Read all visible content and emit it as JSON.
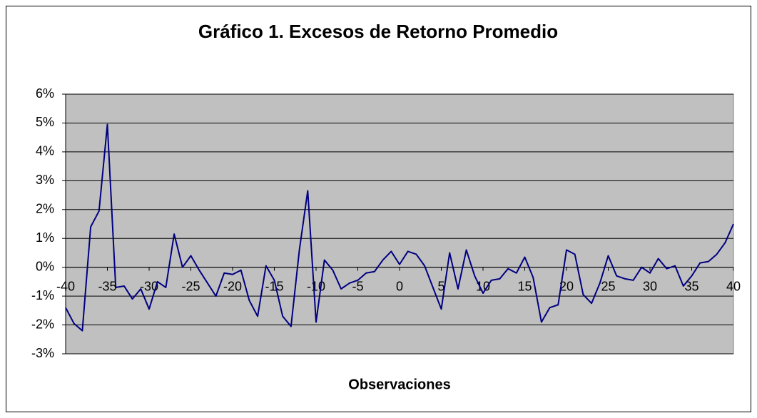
{
  "chart_data": {
    "type": "line",
    "title": "Gráfico 1. Excesos de Retorno Promedio",
    "xlabel": "Observaciones",
    "x": [
      -40,
      -39,
      -38,
      -37,
      -36,
      -35,
      -34,
      -33,
      -32,
      -31,
      -30,
      -29,
      -28,
      -27,
      -26,
      -25,
      -24,
      -23,
      -22,
      -21,
      -20,
      -19,
      -18,
      -17,
      -16,
      -15,
      -14,
      -13,
      -12,
      -11,
      -10,
      -9,
      -8,
      -7,
      -6,
      -5,
      -4,
      -3,
      -2,
      -1,
      0,
      1,
      2,
      3,
      4,
      5,
      6,
      7,
      8,
      9,
      10,
      11,
      12,
      13,
      14,
      15,
      16,
      17,
      18,
      19,
      20,
      21,
      22,
      23,
      24,
      25,
      26,
      27,
      28,
      29,
      30,
      31,
      32,
      33,
      34,
      35,
      36,
      37,
      38,
      39,
      40
    ],
    "series": [
      {
        "name": "Excesos de Retorno Promedio",
        "color": "#000080",
        "values": [
          -1.4,
          -1.95,
          -2.2,
          1.4,
          1.95,
          4.95,
          -0.7,
          -0.65,
          -1.1,
          -0.75,
          -1.45,
          -0.5,
          -0.7,
          1.15,
          0,
          0.4,
          -0.1,
          -0.55,
          -1.0,
          -0.2,
          -0.25,
          -0.1,
          -1.15,
          -1.7,
          0.05,
          -0.45,
          -1.7,
          -2.05,
          0.6,
          2.65,
          -1.9,
          0.25,
          -0.1,
          -0.75,
          -0.55,
          -0.45,
          -0.2,
          -0.15,
          0.25,
          0.55,
          0.1,
          0.55,
          0.45,
          0.05,
          -0.7,
          -1.45,
          0.5,
          -0.75,
          0.6,
          -0.3,
          -0.9,
          -0.45,
          -0.4,
          -0.05,
          -0.2,
          0.35,
          -0.35,
          -1.9,
          -1.4,
          -1.3,
          0.6,
          0.45,
          -0.95,
          -1.25,
          -0.55,
          0.4,
          -0.3,
          -0.4,
          -0.45,
          0,
          -0.2,
          0.3,
          -0.05,
          0.05,
          -0.65,
          -0.3,
          0.15,
          0.2,
          0.45,
          0.85,
          1.5
        ]
      }
    ],
    "xlim": [
      -40,
      40
    ],
    "xticks": [
      -40,
      -35,
      -30,
      -25,
      -20,
      -15,
      -10,
      -5,
      0,
      5,
      10,
      15,
      20,
      25,
      30,
      35,
      40
    ],
    "ylim": [
      -3,
      6
    ],
    "yticks": [
      {
        "value": -3,
        "label": "-3%"
      },
      {
        "value": -2,
        "label": "-2%"
      },
      {
        "value": -1,
        "label": "-1%"
      },
      {
        "value": 0,
        "label": "0%"
      },
      {
        "value": 1,
        "label": "1%"
      },
      {
        "value": 2,
        "label": "2%"
      },
      {
        "value": 3,
        "label": "3%"
      },
      {
        "value": 4,
        "label": "4%"
      },
      {
        "value": 5,
        "label": "5%"
      },
      {
        "value": 6,
        "label": "6%"
      }
    ],
    "grid": true,
    "plot_background": "#c0c0c0"
  }
}
